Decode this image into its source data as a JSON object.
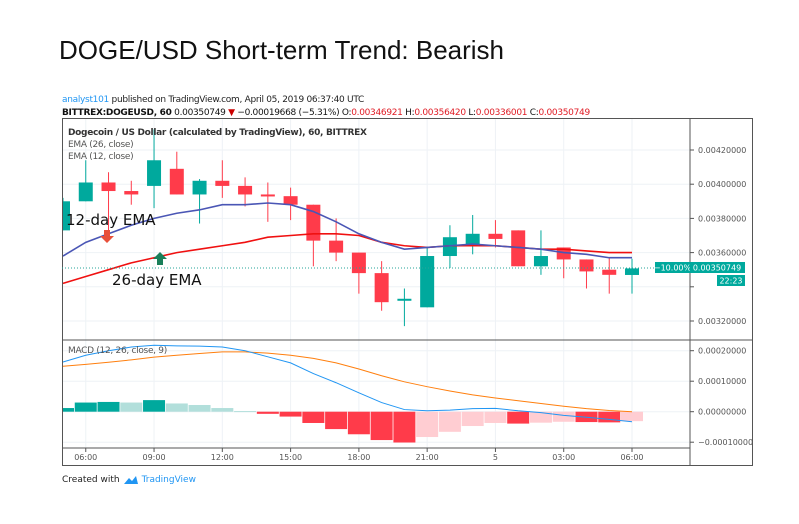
{
  "title": "DOGE/USD Short-term Trend: Bearish",
  "published": {
    "author": "analyst101",
    "text": "published on TradingView.com, April 05, 2019 06:37:40 UTC"
  },
  "ohlc_bar": {
    "symbol": "BITTREX:DOGEUSD, 60",
    "last": "0.00350749",
    "change": "−0.00019668 (−5.31%)",
    "o_label": "O:",
    "o": "0.00346921",
    "h_label": "H:",
    "h": "0.00356420",
    "l_label": "L:",
    "l": "0.00336001",
    "c_label": "C:",
    "c": "0.00350749"
  },
  "legend": {
    "main": "Dogecoin / US Dollar (calculated by TradingView), 60, BITTREX",
    "ema26": "EMA (26, close)",
    "ema12": "EMA (12, close)",
    "macd": "MACD (12, 26, close, 9)"
  },
  "annotations": {
    "ema12": "12-day EMA",
    "ema26": "26-day EMA"
  },
  "badges": {
    "pct": "−10.00%",
    "price": "0.00350749",
    "countdown": "22:23"
  },
  "footer": {
    "created_with": "Created with",
    "brand": "TradingView"
  },
  "colors": {
    "up": "#00a99d",
    "down": "#ff3b4a",
    "ema12": "#4a56b5",
    "ema26": "#f01010",
    "macd": "#2196f3",
    "signal": "#ff7f0e",
    "hist_up_strong": "#00a99d",
    "hist_up_weak": "#b2dfdb",
    "hist_down_strong": "#ff3b4a",
    "hist_down_weak": "#ffcdd2"
  },
  "chart_data": {
    "type": "candlestick",
    "interval": "60",
    "times": [
      "05:00",
      "06:00",
      "07:00",
      "08:00",
      "09:00",
      "10:00",
      "11:00",
      "12:00",
      "13:00",
      "14:00",
      "15:00",
      "16:00",
      "17:00",
      "18:00",
      "19:00",
      "20:00",
      "21:00",
      "22:00",
      "23:00",
      "00:00",
      "01:00",
      "02:00",
      "03:00",
      "04:00",
      "05:00",
      "06:00"
    ],
    "ohlc": [
      [
        0.00373,
        0.00392,
        0.00373,
        0.0039
      ],
      [
        0.0039,
        0.00414,
        0.0039,
        0.00401
      ],
      [
        0.00401,
        0.00407,
        0.0037,
        0.00396
      ],
      [
        0.00396,
        0.00402,
        0.00388,
        0.00394
      ],
      [
        0.00399,
        0.00432,
        0.00386,
        0.00414
      ],
      [
        0.00409,
        0.00419,
        0.00394,
        0.00394
      ],
      [
        0.00394,
        0.00403,
        0.00377,
        0.00402
      ],
      [
        0.00402,
        0.00414,
        0.00392,
        0.00399
      ],
      [
        0.00399,
        0.00404,
        0.00387,
        0.00394
      ],
      [
        0.00394,
        0.00401,
        0.00378,
        0.00393
      ],
      [
        0.00393,
        0.00398,
        0.00379,
        0.00388
      ],
      [
        0.00388,
        0.00388,
        0.00352,
        0.00367
      ],
      [
        0.00367,
        0.0038,
        0.00355,
        0.0036
      ],
      [
        0.0036,
        0.0036,
        0.00336,
        0.00348
      ],
      [
        0.00348,
        0.00355,
        0.00326,
        0.00331
      ],
      [
        0.00332,
        0.00339,
        0.00317,
        0.00333
      ],
      [
        0.00328,
        0.00363,
        0.00328,
        0.00358
      ],
      [
        0.00358,
        0.00376,
        0.00351,
        0.00369
      ],
      [
        0.00364,
        0.00382,
        0.00359,
        0.00371
      ],
      [
        0.00371,
        0.00379,
        0.00363,
        0.00368
      ],
      [
        0.00373,
        0.00373,
        0.00352,
        0.00352
      ],
      [
        0.00352,
        0.00373,
        0.00347,
        0.00358
      ],
      [
        0.00363,
        0.00363,
        0.00345,
        0.00356
      ],
      [
        0.00356,
        0.00356,
        0.00339,
        0.00349
      ],
      [
        0.0035,
        0.00357,
        0.00336,
        0.00347
      ],
      [
        0.00346921,
        0.0035642,
        0.00336001,
        0.00350749
      ]
    ],
    "ema12": [
      0.00358,
      0.00366,
      0.00371,
      0.00376,
      0.0038,
      0.00383,
      0.00385,
      0.00388,
      0.00388,
      0.00389,
      0.00388,
      0.00384,
      0.00378,
      0.00371,
      0.00366,
      0.00362,
      0.00363,
      0.00364,
      0.00365,
      0.00364,
      0.00363,
      0.00362,
      0.0036,
      0.00359,
      0.00357,
      0.00357
    ],
    "ema26": [
      0.00342,
      0.00346,
      0.0035,
      0.00354,
      0.00357,
      0.0036,
      0.00362,
      0.00364,
      0.00366,
      0.00369,
      0.0037,
      0.00371,
      0.00371,
      0.0037,
      0.00366,
      0.00364,
      0.00363,
      0.00364,
      0.00364,
      0.00364,
      0.00363,
      0.00362,
      0.00362,
      0.00361,
      0.0036,
      0.0036
    ],
    "macd": [
      0.000163,
      0.000185,
      0.0002,
      0.000212,
      0.000218,
      0.000216,
      0.000215,
      0.000212,
      0.0002,
      0.00018,
      0.00016,
      0.000125,
      9.5e-05,
      6.2e-05,
      3e-05,
      7e-06,
      3e-06,
      5e-06,
      1e-05,
      1.1e-05,
      3e-06,
      -3e-06,
      -1.2e-05,
      -1.8e-05,
      -2.5e-05,
      -3.3e-05
    ],
    "signal": [
      0.000149,
      0.000155,
      0.000162,
      0.00017,
      0.000179,
      0.000185,
      0.000191,
      0.000196,
      0.000196,
      0.000192,
      0.000185,
      0.000175,
      0.00016,
      0.00014,
      0.000118,
      9.8e-05,
      8.2e-05,
      6.8e-05,
      5.5e-05,
      4.5e-05,
      3.6e-05,
      2.7e-05,
      1.8e-05,
      1e-05,
      4e-06,
      0.0
    ],
    "histogram": [
      1.2e-05,
      3e-05,
      3.2e-05,
      3e-05,
      3.8e-05,
      2.7e-05,
      2.2e-05,
      1.2e-05,
      2e-06,
      -7e-06,
      -1.6e-05,
      -3.7e-05,
      -5.7e-05,
      -7.4e-05,
      -9.3e-05,
      -0.000101,
      -8.3e-05,
      -6.6e-05,
      -4.7e-05,
      -3.7e-05,
      -3.9e-05,
      -3.6e-05,
      -3.3e-05,
      -3.4e-05,
      -3.5e-05,
      -3.1e-05
    ],
    "price_axis": {
      "ticks": [
        "0.00420000",
        "0.00400000",
        "0.00380000",
        "0.00360000",
        "0.00340000",
        "0.00320000"
      ],
      "range": [
        0.00305,
        0.00439
      ]
    },
    "macd_axis": {
      "ticks": [
        "0.00020000",
        "0.00010000",
        "0.00000000",
        "−0.00010000"
      ]
    },
    "x_ticks": [
      {
        "label": "06:00",
        "index": 1
      },
      {
        "label": "09:00",
        "index": 4
      },
      {
        "label": "12:00",
        "index": 7
      },
      {
        "label": "15:00",
        "index": 10
      },
      {
        "label": "18:00",
        "index": 13
      },
      {
        "label": "21:00",
        "index": 16
      },
      {
        "label": "5",
        "index": 19
      },
      {
        "label": "03:00",
        "index": 22
      },
      {
        "label": "06:00",
        "index": 25
      }
    ]
  }
}
